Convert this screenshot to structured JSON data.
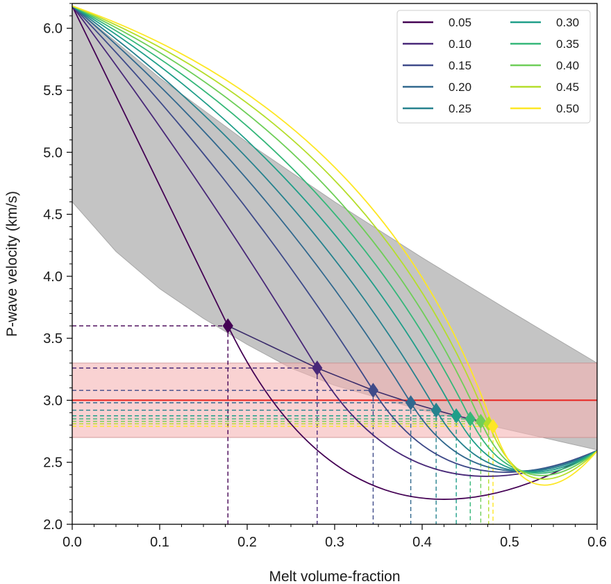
{
  "chart_data": {
    "type": "line",
    "xlabel": "Melt volume-fraction",
    "ylabel": "P-wave velocity (km/s)",
    "xlim": [
      0,
      0.6
    ],
    "ylim": [
      2.0,
      6.2
    ],
    "x_ticks": [
      0.0,
      0.1,
      0.2,
      0.3,
      0.4,
      0.5,
      0.6
    ],
    "x_tick_labels": [
      "0.0",
      "0.1",
      "0.2",
      "0.3",
      "0.4",
      "0.5",
      "0.6"
    ],
    "y_ticks": [
      2.0,
      2.5,
      3.0,
      3.5,
      4.0,
      4.5,
      5.0,
      5.5,
      6.0
    ],
    "y_tick_labels": [
      "2.0",
      "2.5",
      "3.0",
      "3.5",
      "4.0",
      "4.5",
      "5.0",
      "5.5",
      "6.0"
    ],
    "grid": false,
    "legend_position": "top-right",
    "legend_columns": 2,
    "bound_region": {
      "color": "#c4c4c4",
      "upper": {
        "x": [
          0.0,
          0.1,
          0.2,
          0.3,
          0.4,
          0.5,
          0.6
        ],
        "y": [
          6.18,
          5.6,
          5.08,
          4.6,
          4.15,
          3.72,
          3.3
        ]
      },
      "lower": {
        "x": [
          0.0,
          0.05,
          0.1,
          0.15,
          0.2,
          0.25,
          0.3,
          0.35,
          0.4,
          0.45,
          0.5,
          0.55,
          0.6
        ],
        "y": [
          4.6,
          4.2,
          3.9,
          3.66,
          3.45,
          3.26,
          3.12,
          3.02,
          2.92,
          2.84,
          2.76,
          2.68,
          2.6
        ]
      }
    },
    "observed_band": {
      "ymin": 2.7,
      "ymax": 3.3,
      "color": "#f5b4b4"
    },
    "observed_value": {
      "y": 3.0,
      "color": "#e8231f"
    },
    "series": [
      {
        "name": "0.05",
        "color": "#440154",
        "end": {
          "x": 0.178,
          "y": 3.6
        }
      },
      {
        "name": "0.10",
        "color": "#482878",
        "end": {
          "x": 0.28,
          "y": 3.26
        }
      },
      {
        "name": "0.15",
        "color": "#3e4a89",
        "end": {
          "x": 0.344,
          "y": 3.08
        }
      },
      {
        "name": "0.20",
        "color": "#31688e",
        "end": {
          "x": 0.387,
          "y": 2.98
        }
      },
      {
        "name": "0.25",
        "color": "#26828e",
        "end": {
          "x": 0.416,
          "y": 2.92
        }
      },
      {
        "name": "0.30",
        "color": "#1f9e89",
        "end": {
          "x": 0.439,
          "y": 2.875
        }
      },
      {
        "name": "0.35",
        "color": "#35b779",
        "end": {
          "x": 0.455,
          "y": 2.85
        }
      },
      {
        "name": "0.40",
        "color": "#6ece58",
        "end": {
          "x": 0.467,
          "y": 2.83
        }
      },
      {
        "name": "0.45",
        "color": "#b5de2b",
        "end": {
          "x": 0.476,
          "y": 2.81
        }
      },
      {
        "name": "0.50",
        "color": "#fde725",
        "end": {
          "x": 0.481,
          "y": 2.79
        }
      }
    ],
    "series_start": {
      "x": 0.0,
      "y": 6.18
    },
    "saturation_curve": {
      "x": [
        0.178,
        0.28,
        0.344,
        0.387,
        0.416,
        0.439,
        0.455,
        0.467,
        0.476,
        0.481
      ],
      "y": [
        3.6,
        3.26,
        3.08,
        2.98,
        2.92,
        2.875,
        2.85,
        2.83,
        2.81,
        2.79
      ]
    }
  }
}
